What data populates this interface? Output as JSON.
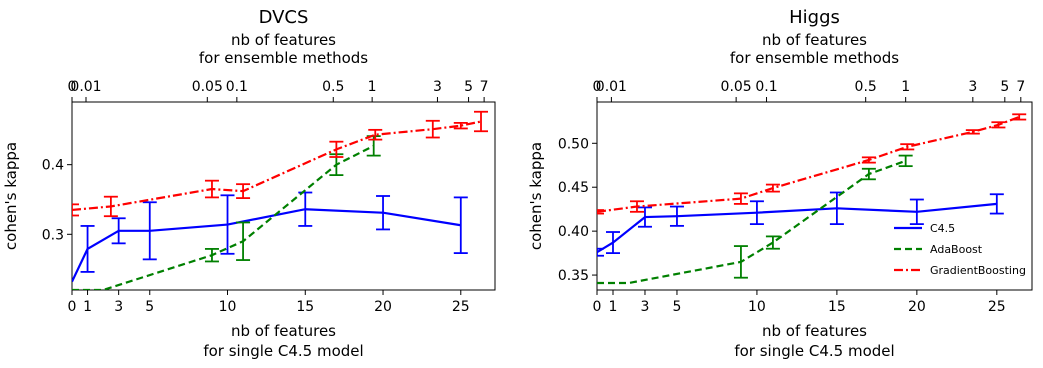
{
  "chart_data": [
    {
      "type": "line",
      "title": "DVCS",
      "ylabel": "cohen's kappa",
      "xlabel_bottom": [
        "nb of features",
        "for single C4.5 model"
      ],
      "xlabel_top": [
        "nb of features",
        "for ensemble methods"
      ],
      "xlim": [
        0,
        27.2
      ],
      "ylim": [
        0.22,
        0.49
      ],
      "bottom_ticks": [
        {
          "v": 0,
          "label": "0"
        },
        {
          "v": 1,
          "label": "1"
        },
        {
          "v": 3,
          "label": "3"
        },
        {
          "v": 5,
          "label": "5"
        },
        {
          "v": 10,
          "label": "10"
        },
        {
          "v": 15,
          "label": "15"
        },
        {
          "v": 20,
          "label": "20"
        },
        {
          "v": 25,
          "label": "25"
        }
      ],
      "top_ticks": [
        {
          "v": 0,
          "label": "0"
        },
        {
          "v": 0.9,
          "label": "0.01"
        },
        {
          "v": 8.7,
          "label": "0.05"
        },
        {
          "v": 10.6,
          "label": "0.1"
        },
        {
          "v": 16.8,
          "label": "0.5"
        },
        {
          "v": 19.3,
          "label": "1"
        },
        {
          "v": 23.5,
          "label": "3"
        },
        {
          "v": 25.5,
          "label": "5"
        },
        {
          "v": 26.5,
          "label": "7"
        }
      ],
      "yticks": [
        {
          "v": 0.3,
          "label": "0.3"
        },
        {
          "v": 0.4,
          "label": "0.4"
        }
      ],
      "series": [
        {
          "name": "C4.5",
          "color": "#0000ff",
          "style": "solid",
          "points": [
            {
              "x": 0,
              "y": 0.232,
              "err": 0.0
            },
            {
              "x": 1,
              "y": 0.279,
              "err": 0.033
            },
            {
              "x": 3,
              "y": 0.305,
              "err": 0.018
            },
            {
              "x": 5,
              "y": 0.305,
              "err": 0.041
            },
            {
              "x": 10,
              "y": 0.314,
              "err": 0.042
            },
            {
              "x": 15,
              "y": 0.336,
              "err": 0.024
            },
            {
              "x": 20,
              "y": 0.331,
              "err": 0.024
            },
            {
              "x": 25,
              "y": 0.313,
              "err": 0.04
            }
          ]
        },
        {
          "name": "AdaBoost",
          "color": "#008000",
          "style": "dashed",
          "points": [
            {
              "x": 0,
              "y": 0.22,
              "err": 0.0
            },
            {
              "x": 2,
              "y": 0.22,
              "err": 0.0
            },
            {
              "x": 9,
              "y": 0.27,
              "err": 0.009
            },
            {
              "x": 11,
              "y": 0.29,
              "err": 0.027
            },
            {
              "x": 17,
              "y": 0.4,
              "err": 0.015
            },
            {
              "x": 19.4,
              "y": 0.427,
              "err": 0.014
            }
          ]
        },
        {
          "name": "GradientBoosting",
          "color": "#ff0000",
          "style": "dashdot",
          "points": [
            {
              "x": 0,
              "y": 0.335,
              "err": 0.008
            },
            {
              "x": 2.5,
              "y": 0.34,
              "err": 0.014
            },
            {
              "x": 9,
              "y": 0.365,
              "err": 0.012
            },
            {
              "x": 11,
              "y": 0.362,
              "err": 0.01
            },
            {
              "x": 17,
              "y": 0.422,
              "err": 0.011
            },
            {
              "x": 19.5,
              "y": 0.443,
              "err": 0.007
            },
            {
              "x": 23.2,
              "y": 0.451,
              "err": 0.012
            },
            {
              "x": 25,
              "y": 0.456,
              "err": 0.004
            },
            {
              "x": 26.3,
              "y": 0.462,
              "err": 0.014
            }
          ]
        }
      ]
    },
    {
      "type": "line",
      "title": "Higgs",
      "ylabel": "cohen's kappa",
      "xlabel_bottom": [
        "nb of features",
        "for single C4.5 model"
      ],
      "xlabel_top": [
        "nb of features",
        "for ensemble methods"
      ],
      "xlim": [
        0,
        27.2
      ],
      "ylim": [
        0.333,
        0.547
      ],
      "bottom_ticks": [
        {
          "v": 0,
          "label": "0"
        },
        {
          "v": 1,
          "label": "1"
        },
        {
          "v": 3,
          "label": "3"
        },
        {
          "v": 5,
          "label": "5"
        },
        {
          "v": 10,
          "label": "10"
        },
        {
          "v": 15,
          "label": "15"
        },
        {
          "v": 20,
          "label": "20"
        },
        {
          "v": 25,
          "label": "25"
        }
      ],
      "top_ticks": [
        {
          "v": 0,
          "label": "0"
        },
        {
          "v": 0.9,
          "label": "0.01"
        },
        {
          "v": 8.7,
          "label": "0.05"
        },
        {
          "v": 10.6,
          "label": "0.1"
        },
        {
          "v": 16.8,
          "label": "0.5"
        },
        {
          "v": 19.3,
          "label": "1"
        },
        {
          "v": 23.5,
          "label": "3"
        },
        {
          "v": 25.5,
          "label": "5"
        },
        {
          "v": 26.5,
          "label": "7"
        }
      ],
      "yticks": [
        {
          "v": 0.35,
          "label": "0.35"
        },
        {
          "v": 0.4,
          "label": "0.40"
        },
        {
          "v": 0.45,
          "label": "0.45"
        },
        {
          "v": 0.5,
          "label": "0.50"
        }
      ],
      "legend": {
        "placement": "lower right"
      },
      "series": [
        {
          "name": "C4.5",
          "color": "#0000ff",
          "style": "solid",
          "points": [
            {
              "x": 0,
              "y": 0.376,
              "err": 0.004
            },
            {
              "x": 1,
              "y": 0.387,
              "err": 0.012
            },
            {
              "x": 3,
              "y": 0.416,
              "err": 0.011
            },
            {
              "x": 5,
              "y": 0.417,
              "err": 0.011
            },
            {
              "x": 10,
              "y": 0.421,
              "err": 0.013
            },
            {
              "x": 15,
              "y": 0.426,
              "err": 0.018
            },
            {
              "x": 20,
              "y": 0.422,
              "err": 0.014
            },
            {
              "x": 25,
              "y": 0.431,
              "err": 0.011
            }
          ]
        },
        {
          "name": "AdaBoost",
          "color": "#008000",
          "style": "dashed",
          "points": [
            {
              "x": 0,
              "y": 0.341,
              "err": 0.0
            },
            {
              "x": 2,
              "y": 0.341,
              "err": 0.0
            },
            {
              "x": 9,
              "y": 0.365,
              "err": 0.018
            },
            {
              "x": 11,
              "y": 0.387,
              "err": 0.007
            },
            {
              "x": 17,
              "y": 0.465,
              "err": 0.006
            },
            {
              "x": 19.3,
              "y": 0.48,
              "err": 0.006
            }
          ]
        },
        {
          "name": "GradientBoosting",
          "color": "#ff0000",
          "style": "dashdot",
          "points": [
            {
              "x": 0,
              "y": 0.422,
              "err": 0.002
            },
            {
              "x": 2.5,
              "y": 0.428,
              "err": 0.006
            },
            {
              "x": 9,
              "y": 0.437,
              "err": 0.006
            },
            {
              "x": 11,
              "y": 0.449,
              "err": 0.004
            },
            {
              "x": 17,
              "y": 0.481,
              "err": 0.003
            },
            {
              "x": 19.4,
              "y": 0.496,
              "err": 0.003
            },
            {
              "x": 23.5,
              "y": 0.513,
              "err": 0.002
            },
            {
              "x": 25.1,
              "y": 0.521,
              "err": 0.003
            },
            {
              "x": 26.4,
              "y": 0.53,
              "err": 0.003
            }
          ]
        }
      ]
    }
  ]
}
